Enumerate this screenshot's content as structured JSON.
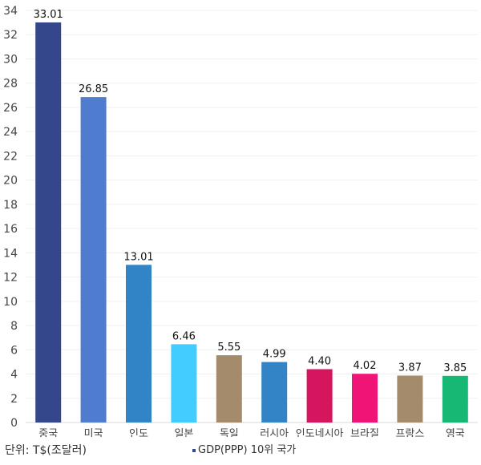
{
  "chart_data": {
    "type": "bar",
    "title": "",
    "xlabel": "",
    "ylabel": "",
    "unit_label": "단위: T$(조달러)",
    "legend": "GDP(PPP) 10위 국가",
    "legend_position": "bottom-center",
    "categories": [
      "중국",
      "미국",
      "인도",
      "일본",
      "독일",
      "러시아",
      "인도네시아",
      "브라질",
      "프랑스",
      "영국"
    ],
    "values": [
      33.01,
      26.85,
      13.01,
      6.46,
      5.55,
      4.99,
      4.4,
      4.02,
      3.87,
      3.85
    ],
    "value_labels": [
      "33.01",
      "26.85",
      "13.01",
      "6.46",
      "5.55",
      "4.99",
      "4.40",
      "4.02",
      "3.87",
      "3.85"
    ],
    "colors": [
      "#34478a",
      "#507cd0",
      "#3185c6",
      "#42ccff",
      "#a38b6c",
      "#3284c6",
      "#d5165e",
      "#f01476",
      "#a38b6c",
      "#17b774"
    ],
    "ylim": [
      0,
      34
    ],
    "yticks": [
      0,
      2,
      4,
      6,
      8,
      10,
      12,
      14,
      16,
      18,
      20,
      22,
      24,
      26,
      28,
      30,
      32,
      34
    ],
    "grid": true
  }
}
